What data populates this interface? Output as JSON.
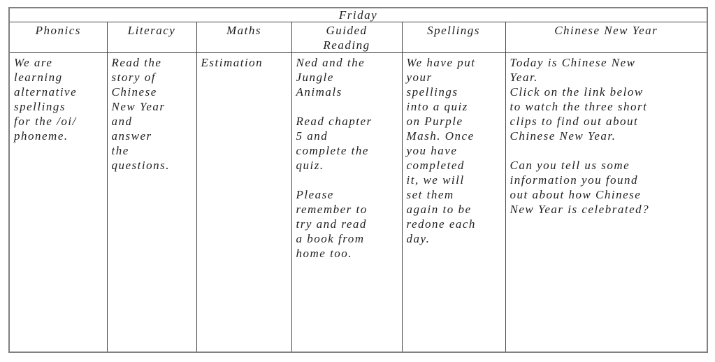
{
  "table": {
    "title": "Friday",
    "columns": [
      {
        "label": "Phonics"
      },
      {
        "label": "Literacy"
      },
      {
        "label": "Maths"
      },
      {
        "label": "Guided\nReading"
      },
      {
        "label": "Spellings"
      },
      {
        "label": "Chinese New Year"
      }
    ],
    "cells": [
      "We are\nlearning\nalternative\nspellings\nfor the /oi/\nphoneme.",
      "Read the\nstory of\nChinese\nNew Year\nand\nanswer\nthe\nquestions.",
      "Estimation",
      "Ned and the\nJungle\nAnimals\n\nRead chapter\n5 and\ncomplete the\nquiz.\n\nPlease\nremember to\ntry and read\na book from\nhome too.",
      "We have put\nyour\nspellings\ninto a quiz\non Purple\nMash. Once\nyou have\ncompleted\nit, we will\nset them\nagain to be\nredone each\nday.",
      "Today is Chinese New\nYear.\nClick on the link below\nto watch the three short\nclips to find out about\nChinese New Year.\n\nCan you tell us some\ninformation you found\nout about how Chinese\nNew Year is celebrated?"
    ],
    "colors": {
      "page_background": "#ffffff",
      "text": "#1f1f1f",
      "border_outer": "#808080",
      "border_inner": "#454545"
    }
  }
}
